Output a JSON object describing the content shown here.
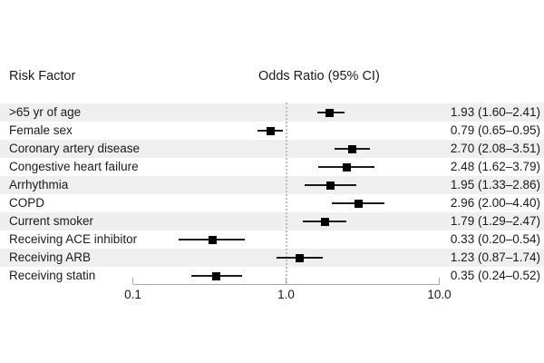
{
  "header": {
    "risk_factor": "Risk Factor",
    "odds_ratio": "Odds Ratio (95% CI)"
  },
  "chart_data": {
    "type": "forest",
    "scale": "log10",
    "xlim": [
      0.1,
      10.0
    ],
    "x_ticks": [
      {
        "value": 0.1,
        "label": "0.1"
      },
      {
        "value": 1.0,
        "label": "1.0"
      },
      {
        "value": 10.0,
        "label": "10.0"
      }
    ],
    "reference_line": 1.0,
    "legend_position": "none",
    "grid": false,
    "rows": [
      {
        "label": ">65 yr of age",
        "or": 1.93,
        "low": 1.6,
        "high": 2.41,
        "display": "1.93 (1.60–2.41)"
      },
      {
        "label": "Female sex",
        "or": 0.79,
        "low": 0.65,
        "high": 0.95,
        "display": "0.79 (0.65–0.95)"
      },
      {
        "label": "Coronary artery disease",
        "or": 2.7,
        "low": 2.08,
        "high": 3.51,
        "display": "2.70 (2.08–3.51)"
      },
      {
        "label": "Congestive heart failure",
        "or": 2.48,
        "low": 1.62,
        "high": 3.79,
        "display": "2.48 (1.62–3.79)"
      },
      {
        "label": "Arrhythmia",
        "or": 1.95,
        "low": 1.33,
        "high": 2.86,
        "display": "1.95 (1.33–2.86)"
      },
      {
        "label": "COPD",
        "or": 2.96,
        "low": 2.0,
        "high": 4.4,
        "display": "2.96 (2.00–4.40)"
      },
      {
        "label": "Current smoker",
        "or": 1.79,
        "low": 1.29,
        "high": 2.47,
        "display": "1.79 (1.29–2.47)"
      },
      {
        "label": "Receiving ACE inhibitor",
        "or": 0.33,
        "low": 0.2,
        "high": 0.54,
        "display": "0.33 (0.20–0.54)"
      },
      {
        "label": "Receiving ARB",
        "or": 1.23,
        "low": 0.87,
        "high": 1.74,
        "display": "1.23 (0.87–1.74)"
      },
      {
        "label": "Receiving statin",
        "or": 0.35,
        "low": 0.24,
        "high": 0.52,
        "display": "0.35 (0.24–0.52)"
      }
    ],
    "colors": {
      "marker": "#000000",
      "ci_line": "#1a1a1a",
      "row_shade": "#efefef",
      "axis": "#a6a6a6",
      "ref_line": "#bdbdbd",
      "text": "#1a1a1a"
    }
  }
}
